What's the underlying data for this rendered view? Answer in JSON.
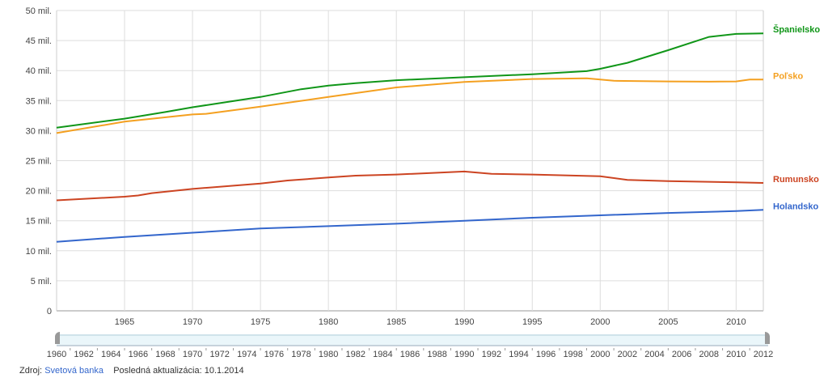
{
  "chart_data": {
    "type": "line",
    "title": "",
    "xlabel": "",
    "ylabel": "",
    "xlim": [
      1960,
      2012
    ],
    "ylim": [
      0,
      50
    ],
    "y_ticks": [
      {
        "v": 0,
        "label": "0"
      },
      {
        "v": 5,
        "label": "5 mil."
      },
      {
        "v": 10,
        "label": "10 mil."
      },
      {
        "v": 15,
        "label": "15 mil."
      },
      {
        "v": 20,
        "label": "20 mil."
      },
      {
        "v": 25,
        "label": "25 mil."
      },
      {
        "v": 30,
        "label": "30 mil."
      },
      {
        "v": 35,
        "label": "35 mil."
      },
      {
        "v": 40,
        "label": "40 mil."
      },
      {
        "v": 45,
        "label": "45 mil."
      },
      {
        "v": 50,
        "label": "50 mil."
      }
    ],
    "x_ticks": [
      "1965",
      "1970",
      "1975",
      "1980",
      "1985",
      "1990",
      "1995",
      "2000",
      "2005",
      "2010"
    ],
    "slider_ticks": [
      "1960",
      "1962",
      "1964",
      "1966",
      "1968",
      "1970",
      "1972",
      "1974",
      "1976",
      "1978",
      "1980",
      "1982",
      "1984",
      "1986",
      "1988",
      "1990",
      "1992",
      "1994",
      "1996",
      "1998",
      "2000",
      "2002",
      "2004",
      "2006",
      "2008",
      "2010",
      "2012"
    ],
    "grid": true,
    "legend": "right, end-of-line labels",
    "series": [
      {
        "name": "Španielsko",
        "color": "#109618",
        "points": [
          [
            1960,
            30.5
          ],
          [
            1965,
            32.0
          ],
          [
            1968,
            33.1
          ],
          [
            1970,
            33.9
          ],
          [
            1975,
            35.6
          ],
          [
            1978,
            36.9
          ],
          [
            1980,
            37.5
          ],
          [
            1982,
            37.9
          ],
          [
            1985,
            38.4
          ],
          [
            1990,
            38.9
          ],
          [
            1995,
            39.4
          ],
          [
            1999,
            39.9
          ],
          [
            2000,
            40.3
          ],
          [
            2002,
            41.3
          ],
          [
            2005,
            43.4
          ],
          [
            2008,
            45.6
          ],
          [
            2010,
            46.1
          ],
          [
            2012,
            46.2
          ]
        ]
      },
      {
        "name": "Poľsko",
        "color": "#f4a020",
        "points": [
          [
            1960,
            29.6
          ],
          [
            1965,
            31.5
          ],
          [
            1970,
            32.7
          ],
          [
            1971,
            32.8
          ],
          [
            1975,
            34.0
          ],
          [
            1980,
            35.6
          ],
          [
            1985,
            37.2
          ],
          [
            1990,
            38.1
          ],
          [
            1995,
            38.6
          ],
          [
            1999,
            38.7
          ],
          [
            2001,
            38.3
          ],
          [
            2005,
            38.2
          ],
          [
            2008,
            38.15
          ],
          [
            2010,
            38.2
          ],
          [
            2011,
            38.5
          ],
          [
            2012,
            38.5
          ]
        ]
      },
      {
        "name": "Rumunsko",
        "color": "#cc4422",
        "points": [
          [
            1960,
            18.4
          ],
          [
            1965,
            19.0
          ],
          [
            1966,
            19.2
          ],
          [
            1967,
            19.6
          ],
          [
            1970,
            20.3
          ],
          [
            1975,
            21.2
          ],
          [
            1977,
            21.7
          ],
          [
            1980,
            22.2
          ],
          [
            1982,
            22.5
          ],
          [
            1985,
            22.7
          ],
          [
            1990,
            23.2
          ],
          [
            1992,
            22.8
          ],
          [
            1995,
            22.7
          ],
          [
            2000,
            22.4
          ],
          [
            2002,
            21.8
          ],
          [
            2005,
            21.6
          ],
          [
            2010,
            21.4
          ],
          [
            2012,
            21.3
          ]
        ]
      },
      {
        "name": "Holandsko",
        "color": "#3366cc",
        "points": [
          [
            1960,
            11.5
          ],
          [
            1965,
            12.3
          ],
          [
            1970,
            13.0
          ],
          [
            1975,
            13.7
          ],
          [
            1980,
            14.1
          ],
          [
            1985,
            14.5
          ],
          [
            1990,
            15.0
          ],
          [
            1995,
            15.5
          ],
          [
            2000,
            15.9
          ],
          [
            2005,
            16.3
          ],
          [
            2010,
            16.6
          ],
          [
            2012,
            16.8
          ]
        ]
      }
    ]
  },
  "footer": {
    "source_label": "Zdroj:",
    "source_link": "Svetová banka",
    "updated": "Posledná aktualizácia: 10.1.2014"
  }
}
